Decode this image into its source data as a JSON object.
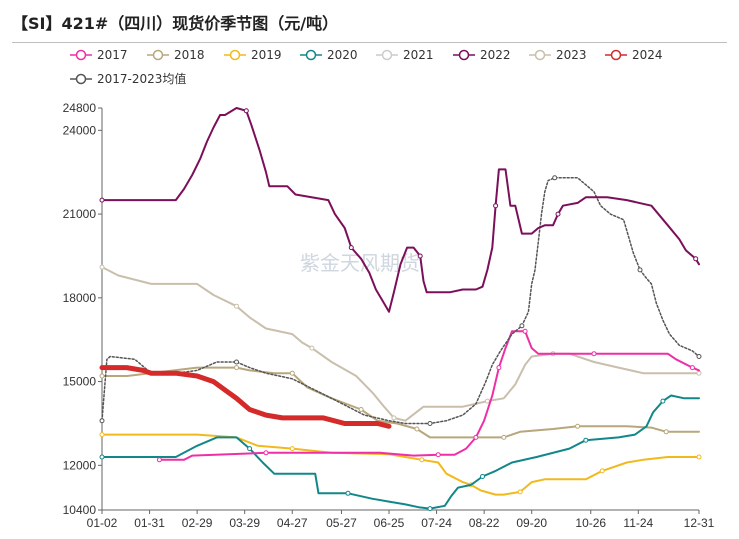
{
  "page": {
    "title": "【SI】421#（四川）现货价季节图（元/吨）",
    "watermark": "紫金天风期货"
  },
  "chart_data": {
    "type": "line",
    "title": "【SI】421#（四川）现货价季节图（元/吨）",
    "xlabel": "",
    "ylabel": "",
    "ylim": [
      10400,
      24800
    ],
    "yticks": [
      10400,
      12000,
      15000,
      18000,
      21000,
      24000,
      24800
    ],
    "xticks": [
      "01-02",
      "01-31",
      "02-29",
      "03-29",
      "04-27",
      "05-27",
      "06-25",
      "07-24",
      "08-22",
      "09-20",
      "10-26",
      "11-24",
      "12-31"
    ],
    "x_positions": [
      0,
      29,
      58,
      87,
      116,
      146,
      175,
      204,
      233,
      262,
      298,
      327,
      364
    ],
    "grid": false,
    "legend_placement": "top",
    "series": [
      {
        "name": "2017",
        "color": "#ee2fa6",
        "width": 2,
        "dashed": false,
        "hidden": false,
        "points": [
          [
            35,
            12200
          ],
          [
            50,
            12200
          ],
          [
            55,
            12350
          ],
          [
            100,
            12450
          ],
          [
            170,
            12450
          ],
          [
            190,
            12350
          ],
          [
            205,
            12380
          ],
          [
            215,
            12380
          ],
          [
            222,
            12600
          ],
          [
            228,
            13000
          ],
          [
            233,
            13600
          ],
          [
            238,
            14500
          ],
          [
            242,
            15500
          ],
          [
            246,
            16200
          ],
          [
            250,
            16800
          ],
          [
            258,
            16800
          ],
          [
            262,
            16200
          ],
          [
            266,
            16000
          ],
          [
            300,
            16000
          ],
          [
            345,
            16000
          ],
          [
            350,
            15800
          ],
          [
            360,
            15500
          ],
          [
            364,
            15400
          ]
        ]
      },
      {
        "name": "2018",
        "color": "#b8a77c",
        "width": 2,
        "dashed": false,
        "hidden": false,
        "points": [
          [
            0,
            15200
          ],
          [
            15,
            15200
          ],
          [
            58,
            15500
          ],
          [
            82,
            15500
          ],
          [
            90,
            15400
          ],
          [
            105,
            15300
          ],
          [
            116,
            15300
          ],
          [
            125,
            14800
          ],
          [
            140,
            14400
          ],
          [
            158,
            14000
          ],
          [
            168,
            13600
          ],
          [
            180,
            13500
          ],
          [
            192,
            13300
          ],
          [
            200,
            13000
          ],
          [
            225,
            13000
          ],
          [
            245,
            13000
          ],
          [
            255,
            13200
          ],
          [
            275,
            13300
          ],
          [
            290,
            13400
          ],
          [
            320,
            13400
          ],
          [
            335,
            13350
          ],
          [
            344,
            13200
          ],
          [
            364,
            13200
          ]
        ]
      },
      {
        "name": "2019",
        "color": "#f2b91b",
        "width": 2,
        "dashed": false,
        "hidden": false,
        "points": [
          [
            0,
            13100
          ],
          [
            58,
            13100
          ],
          [
            82,
            13000
          ],
          [
            95,
            12700
          ],
          [
            116,
            12600
          ],
          [
            140,
            12450
          ],
          [
            175,
            12400
          ],
          [
            185,
            12300
          ],
          [
            195,
            12200
          ],
          [
            205,
            12100
          ],
          [
            210,
            11700
          ],
          [
            220,
            11400
          ],
          [
            225,
            11300
          ],
          [
            231,
            11100
          ],
          [
            240,
            10950
          ],
          [
            245,
            10950
          ],
          [
            255,
            11050
          ],
          [
            262,
            11400
          ],
          [
            270,
            11500
          ],
          [
            295,
            11500
          ],
          [
            305,
            11800
          ],
          [
            320,
            12100
          ],
          [
            330,
            12200
          ],
          [
            345,
            12300
          ],
          [
            364,
            12300
          ]
        ]
      },
      {
        "name": "2020",
        "color": "#12878a",
        "width": 2,
        "dashed": false,
        "hidden": false,
        "points": [
          [
            0,
            12300
          ],
          [
            45,
            12300
          ],
          [
            58,
            12700
          ],
          [
            70,
            13000
          ],
          [
            82,
            13000
          ],
          [
            90,
            12600
          ],
          [
            98,
            12100
          ],
          [
            105,
            11700
          ],
          [
            130,
            11700
          ],
          [
            132,
            11000
          ],
          [
            150,
            11000
          ],
          [
            165,
            10800
          ],
          [
            175,
            10700
          ],
          [
            185,
            10600
          ],
          [
            193,
            10500
          ],
          [
            200,
            10450
          ],
          [
            209,
            10550
          ],
          [
            213,
            10900
          ],
          [
            217,
            11200
          ],
          [
            225,
            11300
          ],
          [
            232,
            11600
          ],
          [
            240,
            11800
          ],
          [
            250,
            12100
          ],
          [
            265,
            12300
          ],
          [
            285,
            12600
          ],
          [
            295,
            12900
          ],
          [
            315,
            13000
          ],
          [
            325,
            13100
          ],
          [
            332,
            13400
          ],
          [
            336,
            13900
          ],
          [
            342,
            14300
          ],
          [
            347,
            14500
          ],
          [
            355,
            14400
          ],
          [
            364,
            14400
          ]
        ]
      },
      {
        "name": "2021",
        "color": "#d6d6d6",
        "width": 1.5,
        "dashed": false,
        "hidden": true,
        "points": []
      },
      {
        "name": "2022",
        "color": "#7b0f5a",
        "width": 2,
        "dashed": false,
        "hidden": false,
        "points": [
          [
            0,
            21500
          ],
          [
            45,
            21500
          ],
          [
            50,
            21900
          ],
          [
            55,
            22400
          ],
          [
            60,
            23000
          ],
          [
            64,
            23600
          ],
          [
            68,
            24100
          ],
          [
            72,
            24550
          ],
          [
            75,
            24550
          ],
          [
            82,
            24800
          ],
          [
            88,
            24700
          ],
          [
            91,
            24200
          ],
          [
            96,
            23300
          ],
          [
            100,
            22500
          ],
          [
            102,
            22000
          ],
          [
            113,
            22000
          ],
          [
            118,
            21700
          ],
          [
            138,
            21500
          ],
          [
            142,
            21000
          ],
          [
            148,
            20500
          ],
          [
            152,
            19800
          ],
          [
            158,
            19400
          ],
          [
            163,
            18900
          ],
          [
            167,
            18300
          ],
          [
            172,
            17800
          ],
          [
            175,
            17500
          ],
          [
            178,
            18200
          ],
          [
            182,
            19200
          ],
          [
            186,
            19800
          ],
          [
            190,
            19800
          ],
          [
            194,
            19500
          ],
          [
            196,
            18600
          ],
          [
            198,
            18200
          ],
          [
            205,
            18200
          ],
          [
            212,
            18200
          ],
          [
            220,
            18300
          ],
          [
            228,
            18300
          ],
          [
            232,
            18400
          ],
          [
            235,
            19000
          ],
          [
            238,
            19800
          ],
          [
            240,
            21300
          ],
          [
            242,
            22600
          ],
          [
            246,
            22600
          ],
          [
            249,
            21300
          ],
          [
            252,
            21300
          ],
          [
            256,
            20300
          ],
          [
            262,
            20300
          ],
          [
            266,
            20500
          ],
          [
            270,
            20600
          ],
          [
            275,
            20600
          ],
          [
            278,
            21000
          ],
          [
            281,
            21300
          ],
          [
            290,
            21400
          ],
          [
            295,
            21600
          ],
          [
            308,
            21600
          ],
          [
            320,
            21500
          ],
          [
            335,
            21300
          ],
          [
            345,
            20600
          ],
          [
            352,
            20100
          ],
          [
            356,
            19700
          ],
          [
            362,
            19400
          ],
          [
            364,
            19200
          ]
        ]
      },
      {
        "name": "2023",
        "color": "#c9bfac",
        "width": 2,
        "dashed": false,
        "hidden": false,
        "points": [
          [
            0,
            19100
          ],
          [
            10,
            18800
          ],
          [
            30,
            18500
          ],
          [
            58,
            18500
          ],
          [
            68,
            18100
          ],
          [
            82,
            17700
          ],
          [
            90,
            17300
          ],
          [
            100,
            16900
          ],
          [
            116,
            16700
          ],
          [
            122,
            16400
          ],
          [
            128,
            16200
          ],
          [
            140,
            15700
          ],
          [
            155,
            15200
          ],
          [
            165,
            14600
          ],
          [
            172,
            14100
          ],
          [
            178,
            13700
          ],
          [
            185,
            13600
          ],
          [
            196,
            14100
          ],
          [
            205,
            14100
          ],
          [
            220,
            14100
          ],
          [
            235,
            14300
          ],
          [
            245,
            14400
          ],
          [
            252,
            14900
          ],
          [
            258,
            15600
          ],
          [
            262,
            15900
          ],
          [
            275,
            16000
          ],
          [
            285,
            16000
          ],
          [
            300,
            15700
          ],
          [
            315,
            15500
          ],
          [
            330,
            15300
          ],
          [
            364,
            15300
          ]
        ]
      },
      {
        "name": "2024",
        "color": "#d42a2a",
        "width": 5,
        "dashed": false,
        "hidden": false,
        "points": [
          [
            0,
            15500
          ],
          [
            15,
            15500
          ],
          [
            25,
            15400
          ],
          [
            30,
            15300
          ],
          [
            45,
            15300
          ],
          [
            58,
            15200
          ],
          [
            68,
            15000
          ],
          [
            75,
            14700
          ],
          [
            82,
            14400
          ],
          [
            90,
            14000
          ],
          [
            100,
            13800
          ],
          [
            110,
            13700
          ],
          [
            120,
            13700
          ],
          [
            135,
            13700
          ],
          [
            148,
            13500
          ],
          [
            168,
            13500
          ],
          [
            175,
            13400
          ]
        ]
      },
      {
        "name": "2017-2023均值",
        "color": "#555555",
        "width": 1.5,
        "dashed": true,
        "hidden": false,
        "points": [
          [
            0,
            13600
          ],
          [
            3,
            15800
          ],
          [
            5,
            15900
          ],
          [
            20,
            15800
          ],
          [
            30,
            15300
          ],
          [
            45,
            15300
          ],
          [
            58,
            15400
          ],
          [
            70,
            15700
          ],
          [
            82,
            15700
          ],
          [
            90,
            15500
          ],
          [
            100,
            15300
          ],
          [
            116,
            15100
          ],
          [
            140,
            14400
          ],
          [
            160,
            13800
          ],
          [
            175,
            13600
          ],
          [
            185,
            13500
          ],
          [
            200,
            13500
          ],
          [
            210,
            13600
          ],
          [
            220,
            13800
          ],
          [
            228,
            14200
          ],
          [
            234,
            15000
          ],
          [
            238,
            15600
          ],
          [
            243,
            16100
          ],
          [
            250,
            16700
          ],
          [
            256,
            17000
          ],
          [
            260,
            17500
          ],
          [
            262,
            18500
          ],
          [
            264,
            19000
          ],
          [
            266,
            20000
          ],
          [
            268,
            21000
          ],
          [
            270,
            21800
          ],
          [
            272,
            22200
          ],
          [
            276,
            22300
          ],
          [
            290,
            22300
          ],
          [
            296,
            22000
          ],
          [
            300,
            21800
          ],
          [
            304,
            21300
          ],
          [
            310,
            21000
          ],
          [
            318,
            20800
          ],
          [
            324,
            19600
          ],
          [
            328,
            19000
          ],
          [
            332,
            18700
          ],
          [
            335,
            18500
          ],
          [
            338,
            17800
          ],
          [
            342,
            17200
          ],
          [
            346,
            16700
          ],
          [
            352,
            16300
          ],
          [
            360,
            16100
          ],
          [
            364,
            15900
          ]
        ]
      }
    ],
    "data_labels": [
      {
        "text": "24800",
        "value": 24800
      },
      {
        "text": "24000",
        "value": 24000
      },
      {
        "text": "21000",
        "value": 21000
      },
      {
        "text": "18000",
        "value": 18000
      },
      {
        "text": "15000",
        "value": 15000
      },
      {
        "text": "12000",
        "value": 12000
      },
      {
        "text": "10400",
        "value": 10400
      }
    ],
    "x_tick_labels": [
      {
        "text": "01-02",
        "pos": 0
      },
      {
        "text": "01-31",
        "pos": 29
      },
      {
        "text": "02-29",
        "pos": 58
      },
      {
        "text": "03-29",
        "pos": 87
      },
      {
        "text": "04-27",
        "pos": 116
      },
      {
        "text": "05-27",
        "pos": 146
      },
      {
        "text": "06-25",
        "pos": 175
      },
      {
        "text": "07-24",
        "pos": 204
      },
      {
        "text": "08-22",
        "pos": 233
      },
      {
        "text": "09-20",
        "pos": 262
      },
      {
        "text": "10-26",
        "pos": 298
      },
      {
        "text": "11-24",
        "pos": 327
      },
      {
        "text": "12-31",
        "pos": 364
      }
    ]
  }
}
